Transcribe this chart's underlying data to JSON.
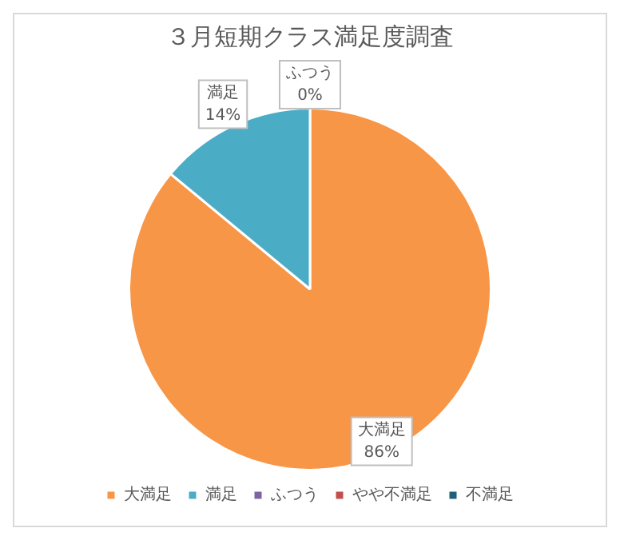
{
  "chart_data": {
    "type": "pie",
    "title": "３月短期クラス満足度調査",
    "categories": [
      "大満足",
      "満足",
      "ふつう",
      "やや不満足",
      "不満足"
    ],
    "values": [
      86,
      14,
      0,
      0,
      0
    ],
    "colors": [
      "#f79646",
      "#4bacc6",
      "#8064a2",
      "#c0504d",
      "#1f5f7a"
    ],
    "value_labels": [
      "86%",
      "14%",
      "0%",
      null,
      null
    ],
    "legend": "bottom"
  }
}
